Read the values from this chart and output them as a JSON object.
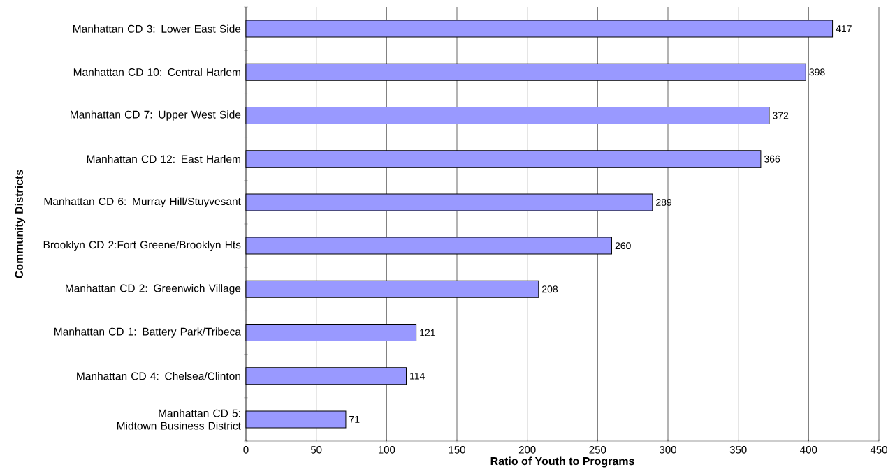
{
  "chart_data": {
    "type": "bar",
    "orientation": "horizontal",
    "categories": [
      "Manhattan CD 3: Lower East Side",
      "Manhattan CD 10: Central Harlem",
      "Manhattan CD 7: Upper West Side",
      "Manhattan CD 12: East Harlem",
      "Manhattan CD 6: Murray Hill/Stuyvesant",
      "Brooklyn CD 2:Fort Greene/Brooklyn Hts",
      "Manhattan CD 2: Greenwich Village",
      "Manhattan CD 1: Battery Park/Tribeca",
      "Manhattan CD 4: Chelsea/Clinton",
      "Manhattan CD 5: Midtown Business District"
    ],
    "values": [
      417,
      398,
      372,
      366,
      289,
      260,
      208,
      121,
      114,
      71
    ],
    "color": "#9999ff",
    "data_labels": true,
    "xlim": [
      0,
      450
    ],
    "xticks": [
      0,
      50,
      100,
      150,
      200,
      250,
      300,
      350,
      400,
      450
    ],
    "grid": "x",
    "xlabel": "Ratio of Youth to Programs",
    "ylabel": "Community Districts"
  }
}
